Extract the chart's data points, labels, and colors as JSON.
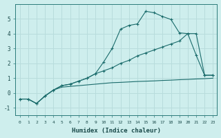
{
  "title": "",
  "xlabel": "Humidex (Indice chaleur)",
  "ylabel": "",
  "bg_color": "#ceeeed",
  "grid_color": "#b8dcdc",
  "line_color": "#1a6b6b",
  "x_ticks": [
    0,
    1,
    2,
    3,
    4,
    5,
    6,
    7,
    8,
    9,
    10,
    11,
    12,
    13,
    14,
    15,
    16,
    17,
    18,
    19,
    20,
    21,
    22,
    23
  ],
  "y_ticks": [
    -1,
    0,
    1,
    2,
    3,
    4,
    5
  ],
  "ylim": [
    -1.5,
    6.0
  ],
  "xlim": [
    -0.5,
    23.5
  ],
  "series1_x": [
    0,
    1,
    2,
    3,
    4,
    5,
    6,
    7,
    8,
    9,
    10,
    11,
    12,
    13,
    14,
    15,
    16,
    17,
    18,
    19,
    20,
    21,
    22,
    23
  ],
  "series1_y": [
    -0.4,
    -0.4,
    -0.7,
    -0.2,
    0.2,
    0.4,
    0.45,
    0.5,
    0.55,
    0.6,
    0.65,
    0.7,
    0.72,
    0.75,
    0.78,
    0.8,
    0.82,
    0.85,
    0.87,
    0.9,
    0.92,
    0.95,
    0.97,
    1.0
  ],
  "series2_x": [
    0,
    1,
    2,
    3,
    4,
    5,
    6,
    7,
    8,
    9,
    10,
    11,
    12,
    13,
    14,
    15,
    16,
    17,
    18,
    19,
    20,
    21,
    22,
    23
  ],
  "series2_y": [
    -0.4,
    -0.4,
    -0.7,
    -0.2,
    0.2,
    0.5,
    0.6,
    0.8,
    1.0,
    1.3,
    1.5,
    1.7,
    2.0,
    2.2,
    2.5,
    2.7,
    2.9,
    3.1,
    3.3,
    3.5,
    4.0,
    4.0,
    1.2,
    1.2
  ],
  "series3_x": [
    0,
    1,
    2,
    3,
    4,
    5,
    6,
    7,
    8,
    9,
    10,
    11,
    12,
    13,
    14,
    15,
    16,
    17,
    18,
    19,
    20,
    21,
    22,
    23
  ],
  "series3_y": [
    -0.4,
    -0.4,
    -0.7,
    -0.2,
    0.2,
    0.5,
    0.6,
    0.8,
    1.0,
    1.3,
    2.1,
    3.0,
    4.3,
    4.55,
    4.65,
    5.5,
    5.4,
    5.15,
    4.95,
    4.05,
    4.0,
    2.55,
    1.2,
    1.2
  ]
}
